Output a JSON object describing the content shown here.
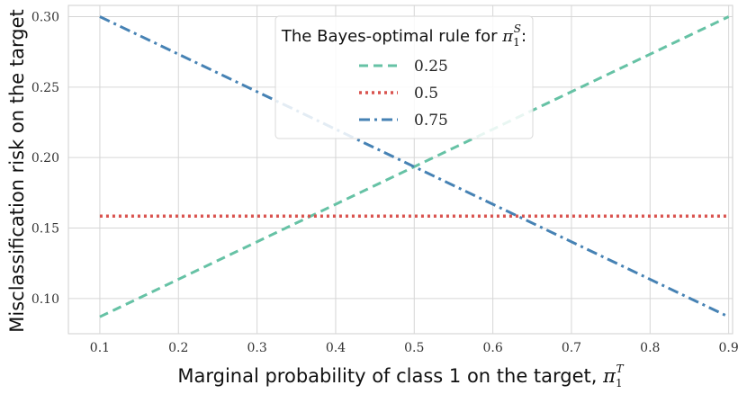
{
  "chart_data": {
    "type": "line",
    "xlabel": "Marginal probability of class 1 on the target, ",
    "xlabel_symbol": "π",
    "xlabel_sub": "1",
    "xlabel_sup": "T",
    "ylabel": "Misclassification risk on the target",
    "xlim": [
      0.06,
      0.905
    ],
    "ylim": [
      0.075,
      0.308
    ],
    "x_ticks": [
      "0.1",
      "0.2",
      "0.3",
      "0.4",
      "0.5",
      "0.6",
      "0.7",
      "0.8",
      "0.9"
    ],
    "y_ticks": [
      "0.10",
      "0.15",
      "0.20",
      "0.25",
      "0.30"
    ],
    "grid": true,
    "legend": {
      "placement": "top-center",
      "title": "The Bayes-optimal rule for ",
      "title_symbol": "π",
      "title_sub": "1",
      "title_sup": "S",
      "title_suffix": ":"
    },
    "series": [
      {
        "name": "0.25",
        "color": "#66c2a5",
        "style": "dashed",
        "x": [
          0.1,
          0.9
        ],
        "y": [
          0.087,
          0.3
        ]
      },
      {
        "name": "0.5",
        "color": "#d9534f",
        "style": "dotted",
        "x": [
          0.1,
          0.9
        ],
        "y": [
          0.1585,
          0.1585
        ]
      },
      {
        "name": "0.75",
        "color": "#4682b4",
        "style": "dashdot",
        "x": [
          0.1,
          0.9
        ],
        "y": [
          0.3,
          0.087
        ]
      }
    ]
  }
}
